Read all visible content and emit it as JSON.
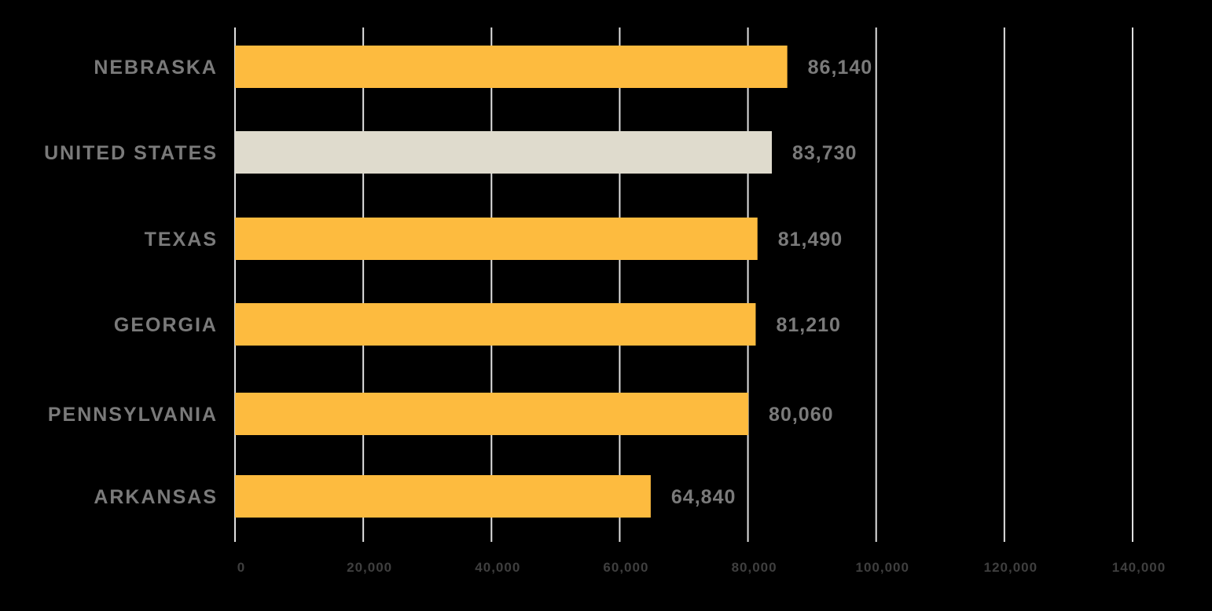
{
  "colors": {
    "background": "#000000",
    "highlight_bar": "#FDBB3F",
    "reference_bar": "#DFDBCD",
    "gridline": "#E0E0E0",
    "category_text": "#7A7A7A",
    "value_text": "#7A7A7A",
    "tick_text": "#3F3F3F"
  },
  "chart_data": {
    "type": "bar",
    "orientation": "horizontal",
    "categories": [
      "NEBRASKA",
      "UNITED STATES",
      "TEXAS",
      "GEORGIA",
      "PENNSYLVANIA",
      "ARKANSAS"
    ],
    "values": [
      86140,
      83730,
      81490,
      81210,
      80060,
      64840
    ],
    "value_labels": [
      "86,140",
      "83,730",
      "81,490",
      "81,210",
      "80,060",
      "64,840"
    ],
    "reference_category": "UNITED STATES",
    "xlim": [
      0,
      140000
    ],
    "xticks": [
      0,
      20000,
      40000,
      60000,
      80000,
      100000,
      120000,
      140000
    ],
    "xtick_labels": [
      "0",
      "20,000",
      "40,000",
      "60,000",
      "80,000",
      "100,000",
      "120,000",
      "140,000"
    ],
    "grid": "vertical",
    "legend": "none",
    "title": "",
    "xlabel": "",
    "ylabel": ""
  }
}
